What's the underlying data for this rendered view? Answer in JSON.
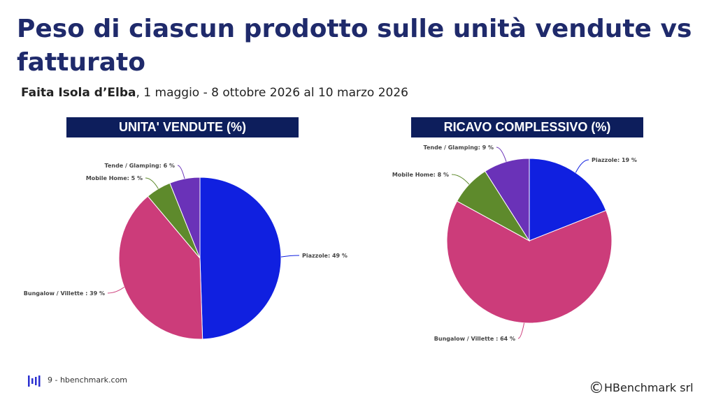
{
  "title": "Peso di ciascun prodotto sulle unità vendute vs fatturato",
  "subtitle": {
    "bold": "Faita Isola d’Elba",
    "rest": ", 1 maggio - 8 ottobre 2026 al 10 marzo 2026"
  },
  "footer": {
    "page_text": "9 - hbenchmark.com",
    "copyright_symbol": "©",
    "copyright_text": "HBenchmark srl"
  },
  "colors": {
    "piazzole": "#1020e0",
    "bungalow": "#cc3c7a",
    "mobile_home": "#5e8a2c",
    "tende": "#6a32b8",
    "header_bg": "#0d1e5c",
    "title": "#1f2a6b"
  },
  "chart_data": [
    {
      "type": "pie",
      "title": "UNITA' VENDUTE (%)",
      "categories": [
        "Piazzole",
        "Bungalow / Villette",
        "Mobile Home",
        "Tende / Glamping"
      ],
      "values": [
        49,
        39,
        5,
        6
      ],
      "labels": [
        "Piazzole: 49 %",
        "Bungalow / Villette : 39 %",
        "Mobile Home: 5 %",
        "Tende / Glamping: 6 %"
      ]
    },
    {
      "type": "pie",
      "title": "RICAVO COMPLESSIVO (%)",
      "categories": [
        "Piazzole",
        "Bungalow / Villette",
        "Mobile Home",
        "Tende / Glamping"
      ],
      "values": [
        19,
        64,
        8,
        9
      ],
      "labels": [
        "Piazzole: 19 %",
        "Bungalow / Villette : 64 %",
        "Mobile Home: 8 %",
        "Tende / Glamping: 9 %"
      ]
    }
  ]
}
